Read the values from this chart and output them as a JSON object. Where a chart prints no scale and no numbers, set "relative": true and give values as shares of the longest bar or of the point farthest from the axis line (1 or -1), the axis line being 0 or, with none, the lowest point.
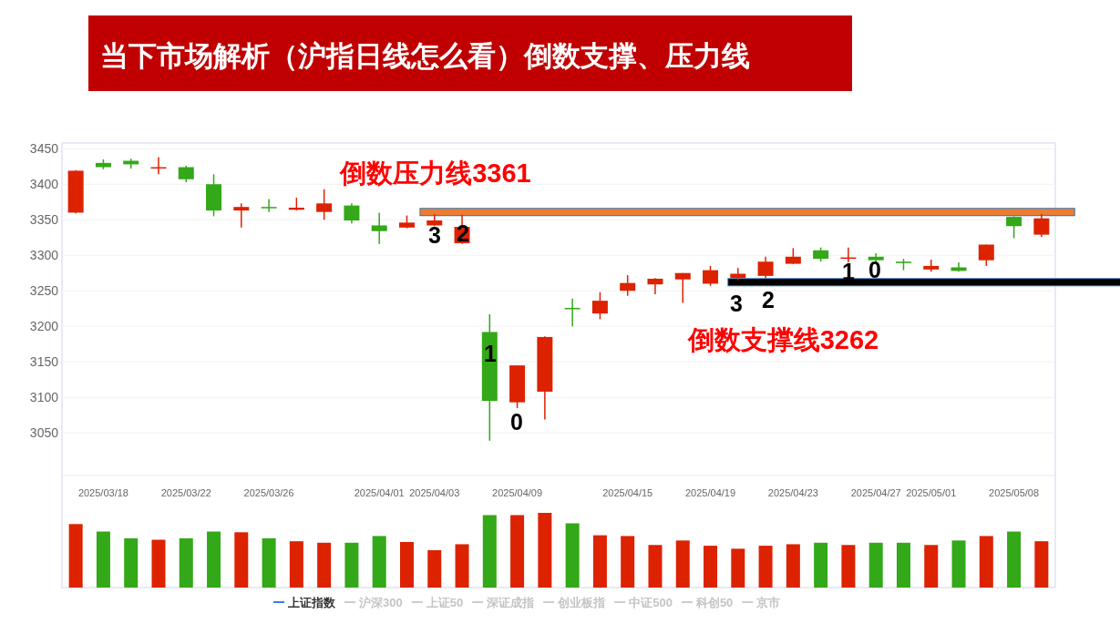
{
  "chart_data": [
    {
      "type": "candlestick",
      "title": "当下市场解析（沪指日线怎么看）倒数支撑、压力线",
      "categories": [
        null,
        "2025/03/18",
        null,
        null,
        "2025/03/22",
        null,
        null,
        "2025/03/26",
        null,
        null,
        null,
        "2025/04/01",
        null,
        "2025/04/03",
        null,
        null,
        "2025/04/09",
        null,
        null,
        null,
        "2025/04/15",
        null,
        null,
        "2025/04/19",
        null,
        null,
        "2025/04/23",
        null,
        null,
        "2025/04/27",
        null,
        "2025/05/01",
        null,
        null,
        "2025/05/08",
        null
      ],
      "ohlc": [
        [
          3360,
          3420,
          3359,
          3419
        ],
        [
          3430,
          3435,
          3421,
          3424
        ],
        [
          3433,
          3436,
          3422,
          3428
        ],
        [
          3423,
          3438,
          3414,
          3424
        ],
        [
          3424,
          3426,
          3403,
          3407
        ],
        [
          3400,
          3414,
          3355,
          3363
        ],
        [
          3363,
          3373,
          3339,
          3368
        ],
        [
          3368,
          3379,
          3361,
          3367
        ],
        [
          3364,
          3381,
          3363,
          3367
        ],
        [
          3361,
          3393,
          3350,
          3373
        ],
        [
          3370,
          3373,
          3345,
          3349
        ],
        [
          3342,
          3360,
          3316,
          3334
        ],
        [
          3339,
          3356,
          3338,
          3346
        ],
        [
          3342,
          3358,
          3341,
          3349
        ],
        [
          3317,
          3357,
          3316,
          3340
        ],
        [
          3192,
          3217,
          3039,
          3095
        ],
        [
          3093,
          3145,
          3085,
          3145
        ],
        [
          3108,
          3186,
          3069,
          3185
        ],
        [
          3226,
          3239,
          3200,
          3224
        ],
        [
          3218,
          3248,
          3210,
          3236
        ],
        [
          3250,
          3272,
          3243,
          3261
        ],
        [
          3259,
          3268,
          3245,
          3267
        ],
        [
          3266,
          3275,
          3233,
          3275
        ],
        [
          3260,
          3285,
          3257,
          3279
        ],
        [
          3268,
          3282,
          3265,
          3274
        ],
        [
          3271,
          3298,
          3268,
          3291
        ],
        [
          3288,
          3310,
          3288,
          3298
        ],
        [
          3307,
          3311,
          3291,
          3295
        ],
        [
          3295,
          3311,
          3290,
          3297
        ],
        [
          3298,
          3303,
          3290,
          3293
        ],
        [
          3291,
          3295,
          3279,
          3289
        ],
        [
          3280,
          3294,
          3277,
          3285
        ],
        [
          3283,
          3290,
          3277,
          3278
        ],
        [
          3293,
          3315,
          3285,
          3315
        ],
        [
          3354,
          3355,
          3324,
          3341
        ],
        [
          3329,
          3358,
          3326,
          3352
        ]
      ],
      "colors": [
        "#dd2200",
        "#33a818",
        "#33a818",
        "#dd2200",
        "#33a818",
        "#33a818",
        "#dd2200",
        "#33a818",
        "#dd2200",
        "#dd2200",
        "#33a818",
        "#33a818",
        "#dd2200",
        "#dd2200",
        "#dd2200",
        "#33a818",
        "#dd2200",
        "#dd2200",
        "#33a818",
        "#dd2200",
        "#dd2200",
        "#dd2200",
        "#dd2200",
        "#dd2200",
        "#dd2200",
        "#dd2200",
        "#dd2200",
        "#33a818",
        "#dd2200",
        "#33a818",
        "#33a818",
        "#dd2200",
        "#33a818",
        "#dd2200",
        "#33a818",
        "#dd2200"
      ],
      "ylim": [
        2990,
        3458
      ],
      "yticks": [
        3050,
        3100,
        3150,
        3200,
        3250,
        3300,
        3350,
        3400,
        3450
      ],
      "grid": "y",
      "ref_lines": [
        {
          "axis": "y",
          "value": 3361,
          "label": "倒数压力线3361",
          "color": "#ed7d31"
        },
        {
          "axis": "y",
          "value": 3262,
          "label": "倒数支撑线3262",
          "color": "#000000"
        }
      ],
      "annotations": [
        "3",
        "2",
        "1",
        "0",
        "3",
        "2",
        "1",
        "0",
        "上证指数",
        "沪深300",
        "上证50",
        "深证成指",
        "创业板指",
        "中证500",
        "科创50",
        "京市"
      ]
    },
    {
      "type": "bar",
      "relative": true,
      "categories": [
        null,
        null,
        null,
        null,
        null,
        null,
        null,
        null,
        null,
        null,
        null,
        null,
        null,
        null,
        null,
        null,
        null,
        null,
        null,
        null,
        null,
        null,
        null,
        null,
        null,
        null,
        null,
        null,
        null,
        null,
        null,
        null,
        null,
        null,
        null,
        null
      ],
      "values": [
        0.85,
        0.75,
        0.66,
        0.64,
        0.66,
        0.75,
        0.74,
        0.66,
        0.62,
        0.6,
        0.6,
        0.69,
        0.61,
        0.5,
        0.58,
        0.97,
        0.97,
        1,
        0.86,
        0.7,
        0.69,
        0.57,
        0.63,
        0.56,
        0.52,
        0.56,
        0.58,
        0.6,
        0.57,
        0.6,
        0.6,
        0.57,
        0.63,
        0.69,
        0.75,
        0.62
      ],
      "colors": [
        "#dd2200",
        "#33a818",
        "#33a818",
        "#dd2200",
        "#33a818",
        "#33a818",
        "#dd2200",
        "#33a818",
        "#dd2200",
        "#dd2200",
        "#33a818",
        "#33a818",
        "#dd2200",
        "#dd2200",
        "#dd2200",
        "#33a818",
        "#dd2200",
        "#dd2200",
        "#33a818",
        "#dd2200",
        "#dd2200",
        "#dd2200",
        "#dd2200",
        "#dd2200",
        "#dd2200",
        "#dd2200",
        "#dd2200",
        "#33a818",
        "#dd2200",
        "#33a818",
        "#33a818",
        "#dd2200",
        "#33a818",
        "#dd2200",
        "#33a818",
        "#dd2200"
      ]
    }
  ]
}
